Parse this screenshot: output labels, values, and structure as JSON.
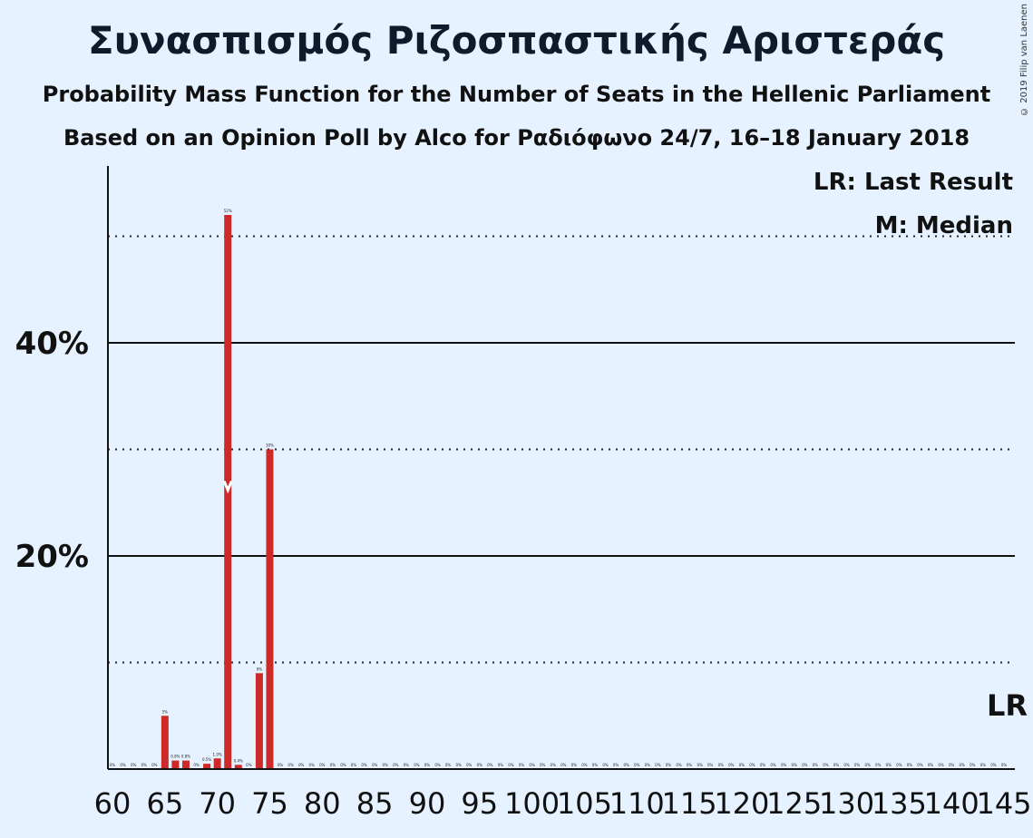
{
  "title": "Συνασπισμός Ριζοσπαστικής Αριστεράς",
  "subtitle1": "Probability Mass Function for the Number of Seats in the Hellenic Parliament",
  "subtitle2": "Based on an Opinion Poll by Alco for Ραδιόφωνο 24/7, 16–18 January 2018",
  "copyright": "© 2019 Filip van Laenen",
  "legend": {
    "last_result": "LR: Last Result",
    "median": "M: Median"
  },
  "lr_marker": "LR",
  "colors": {
    "bar": "#cc2929",
    "background": "#e6f2ff",
    "median_marker": "#ffffff"
  },
  "chart_data": {
    "type": "bar",
    "x_range": [
      60,
      145
    ],
    "ylim": [
      0,
      55
    ],
    "y_ticks": [
      {
        "value": 20,
        "label": "20%"
      },
      {
        "value": 40,
        "label": "40%"
      }
    ],
    "y_dotted_lines": [
      10,
      30,
      50
    ],
    "x_ticks": [
      60,
      65,
      70,
      75,
      80,
      85,
      90,
      95,
      100,
      105,
      110,
      115,
      120,
      125,
      130,
      135,
      140,
      145
    ],
    "median": 71,
    "last_result": 145,
    "bars": [
      {
        "x": 60,
        "value": 0,
        "label": "0%"
      },
      {
        "x": 61,
        "value": 0,
        "label": "0%"
      },
      {
        "x": 62,
        "value": 0,
        "label": "0%"
      },
      {
        "x": 63,
        "value": 0,
        "label": "0%"
      },
      {
        "x": 64,
        "value": 0,
        "label": "0%"
      },
      {
        "x": 65,
        "value": 5,
        "label": "5%"
      },
      {
        "x": 66,
        "value": 0.8,
        "label": "0.8%"
      },
      {
        "x": 67,
        "value": 0.8,
        "label": "0.8%"
      },
      {
        "x": 68,
        "value": 0,
        "label": "0%"
      },
      {
        "x": 69,
        "value": 0.5,
        "label": "0.5%"
      },
      {
        "x": 70,
        "value": 1.0,
        "label": "1.0%"
      },
      {
        "x": 71,
        "value": 52,
        "label": "52%"
      },
      {
        "x": 72,
        "value": 0.4,
        "label": "0.4%"
      },
      {
        "x": 73,
        "value": 0,
        "label": "0%"
      },
      {
        "x": 74,
        "value": 9,
        "label": "9%"
      },
      {
        "x": 75,
        "value": 30,
        "label": "30%"
      },
      {
        "x": 76,
        "value": 0,
        "label": "0%"
      },
      {
        "x": 77,
        "value": 0,
        "label": "0%"
      },
      {
        "x": 78,
        "value": 0,
        "label": "0%"
      },
      {
        "x": 79,
        "value": 0,
        "label": "0%"
      },
      {
        "x": 80,
        "value": 0,
        "label": "0%"
      },
      {
        "x": 81,
        "value": 0,
        "label": "0%"
      },
      {
        "x": 82,
        "value": 0,
        "label": "0%"
      },
      {
        "x": 83,
        "value": 0,
        "label": "0%"
      },
      {
        "x": 84,
        "value": 0,
        "label": "0%"
      },
      {
        "x": 85,
        "value": 0,
        "label": "0%"
      },
      {
        "x": 86,
        "value": 0,
        "label": "0%"
      },
      {
        "x": 87,
        "value": 0,
        "label": "0%"
      },
      {
        "x": 88,
        "value": 0,
        "label": "0%"
      },
      {
        "x": 89,
        "value": 0,
        "label": "0%"
      },
      {
        "x": 90,
        "value": 0,
        "label": "0%"
      },
      {
        "x": 91,
        "value": 0,
        "label": "0%"
      },
      {
        "x": 92,
        "value": 0,
        "label": "0%"
      },
      {
        "x": 93,
        "value": 0,
        "label": "0%"
      },
      {
        "x": 94,
        "value": 0,
        "label": "0%"
      },
      {
        "x": 95,
        "value": 0,
        "label": "0%"
      },
      {
        "x": 96,
        "value": 0,
        "label": "0%"
      },
      {
        "x": 97,
        "value": 0,
        "label": "0%"
      },
      {
        "x": 98,
        "value": 0,
        "label": "0%"
      },
      {
        "x": 99,
        "value": 0,
        "label": "0%"
      },
      {
        "x": 100,
        "value": 0,
        "label": "0%"
      },
      {
        "x": 101,
        "value": 0,
        "label": "0%"
      },
      {
        "x": 102,
        "value": 0,
        "label": "0%"
      },
      {
        "x": 103,
        "value": 0,
        "label": "0%"
      },
      {
        "x": 104,
        "value": 0,
        "label": "0%"
      },
      {
        "x": 105,
        "value": 0,
        "label": "0%"
      },
      {
        "x": 106,
        "value": 0,
        "label": "0%"
      },
      {
        "x": 107,
        "value": 0,
        "label": "0%"
      },
      {
        "x": 108,
        "value": 0,
        "label": "0%"
      },
      {
        "x": 109,
        "value": 0,
        "label": "0%"
      },
      {
        "x": 110,
        "value": 0,
        "label": "0%"
      },
      {
        "x": 111,
        "value": 0,
        "label": "0%"
      },
      {
        "x": 112,
        "value": 0,
        "label": "0%"
      },
      {
        "x": 113,
        "value": 0,
        "label": "0%"
      },
      {
        "x": 114,
        "value": 0,
        "label": "0%"
      },
      {
        "x": 115,
        "value": 0,
        "label": "0%"
      },
      {
        "x": 116,
        "value": 0,
        "label": "0%"
      },
      {
        "x": 117,
        "value": 0,
        "label": "0%"
      },
      {
        "x": 118,
        "value": 0,
        "label": "0%"
      },
      {
        "x": 119,
        "value": 0,
        "label": "0%"
      },
      {
        "x": 120,
        "value": 0,
        "label": "0%"
      },
      {
        "x": 121,
        "value": 0,
        "label": "0%"
      },
      {
        "x": 122,
        "value": 0,
        "label": "0%"
      },
      {
        "x": 123,
        "value": 0,
        "label": "0%"
      },
      {
        "x": 124,
        "value": 0,
        "label": "0%"
      },
      {
        "x": 125,
        "value": 0,
        "label": "0%"
      },
      {
        "x": 126,
        "value": 0,
        "label": "0%"
      },
      {
        "x": 127,
        "value": 0,
        "label": "0%"
      },
      {
        "x": 128,
        "value": 0,
        "label": "0%"
      },
      {
        "x": 129,
        "value": 0,
        "label": "0%"
      },
      {
        "x": 130,
        "value": 0,
        "label": "0%"
      },
      {
        "x": 131,
        "value": 0,
        "label": "0%"
      },
      {
        "x": 132,
        "value": 0,
        "label": "0%"
      },
      {
        "x": 133,
        "value": 0,
        "label": "0%"
      },
      {
        "x": 134,
        "value": 0,
        "label": "0%"
      },
      {
        "x": 135,
        "value": 0,
        "label": "0%"
      },
      {
        "x": 136,
        "value": 0,
        "label": "0%"
      },
      {
        "x": 137,
        "value": 0,
        "label": "0%"
      },
      {
        "x": 138,
        "value": 0,
        "label": "0%"
      },
      {
        "x": 139,
        "value": 0,
        "label": "0%"
      },
      {
        "x": 140,
        "value": 0,
        "label": "0%"
      },
      {
        "x": 141,
        "value": 0,
        "label": "0%"
      },
      {
        "x": 142,
        "value": 0,
        "label": "0%"
      },
      {
        "x": 143,
        "value": 0,
        "label": "0%"
      },
      {
        "x": 144,
        "value": 0,
        "label": "0%"
      },
      {
        "x": 145,
        "value": 0,
        "label": "0%"
      }
    ]
  }
}
